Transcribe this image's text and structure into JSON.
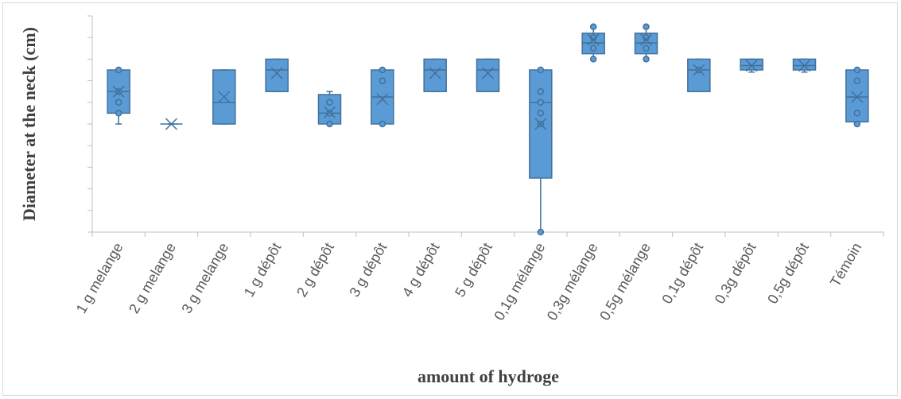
{
  "chart_data": {
    "type": "box",
    "y_label": "Diameter at the neck (cm)",
    "x_label": "amount of hydroge",
    "categories": [
      "1 g melange",
      "2 g melange",
      "3 g melange",
      "1 g dépôt",
      "2 g dépôt",
      "3 g dépôt",
      "4 g dépôt",
      "5 g dépôt",
      "0,1g mélange",
      "0,3g mélange",
      "0,5g mélange",
      "0,1g dépôt",
      "0,3g dépôt",
      "0,5g dépôt",
      "Témoin"
    ],
    "color": "#5b9bd5",
    "edge_color": "#41719c",
    "ylim": [
      0,
      10
    ],
    "yticks": [
      0,
      1,
      2,
      3,
      4,
      5,
      6,
      7,
      8,
      9,
      10
    ],
    "boxes": [
      {
        "min": 5,
        "q1": 5.5,
        "median": 6.5,
        "q3": 7.5,
        "max": 7.5,
        "mean": 6.5,
        "points": [
          7.5,
          6.5,
          6,
          5.5
        ]
      },
      {
        "min": 5,
        "q1": 5,
        "median": 5,
        "q3": 5,
        "max": 5,
        "mean": 5,
        "points": []
      },
      {
        "min": 5,
        "q1": 5,
        "median": 6,
        "q3": 7.5,
        "max": 7.5,
        "mean": 6.25,
        "points": []
      },
      {
        "min": 6.5,
        "q1": 6.5,
        "median": 7.5,
        "q3": 8,
        "max": 8,
        "mean": 7.35,
        "points": []
      },
      {
        "min": 5,
        "q1": 5,
        "median": 5.5,
        "q3": 6.36,
        "max": 6.5,
        "mean": 5.55,
        "points": [
          6,
          5.5,
          5
        ]
      },
      {
        "min": 5,
        "q1": 5,
        "median": 6.25,
        "q3": 7.5,
        "max": 7.5,
        "mean": 6.15,
        "points": [
          7.5,
          7,
          5
        ]
      },
      {
        "min": 6.5,
        "q1": 6.5,
        "median": 7.5,
        "q3": 8,
        "max": 8,
        "mean": 7.35,
        "points": []
      },
      {
        "min": 6.5,
        "q1": 6.5,
        "median": 7.5,
        "q3": 8,
        "max": 8,
        "mean": 7.35,
        "points": []
      },
      {
        "min": 0,
        "q1": 2.5,
        "median": 6,
        "q3": 7.5,
        "max": 7.5,
        "mean": 5,
        "points": [
          7.5,
          6.5,
          6,
          5.5,
          5,
          0
        ]
      },
      {
        "min": 8,
        "q1": 8.25,
        "median": 8.75,
        "q3": 9.2,
        "max": 9.5,
        "mean": 8.9,
        "points": [
          9.5,
          9,
          8.5,
          8
        ]
      },
      {
        "min": 8,
        "q1": 8.25,
        "median": 8.75,
        "q3": 9.2,
        "max": 9.5,
        "mean": 8.9,
        "points": [
          9.5,
          9,
          8.5,
          8
        ]
      },
      {
        "min": 6.5,
        "q1": 6.5,
        "median": 7.5,
        "q3": 8,
        "max": 8,
        "mean": 7.5,
        "points": [
          7.5
        ]
      },
      {
        "min": 7.4,
        "q1": 7.5,
        "median": 7.7,
        "q3": 8,
        "max": 8,
        "mean": 7.7,
        "points": []
      },
      {
        "min": 7.4,
        "q1": 7.5,
        "median": 7.7,
        "q3": 8,
        "max": 8,
        "mean": 7.7,
        "points": []
      },
      {
        "min": 5,
        "q1": 5.1,
        "median": 6.25,
        "q3": 7.5,
        "max": 7.5,
        "mean": 6.25,
        "points": [
          7.5,
          7,
          5.5,
          5
        ]
      }
    ]
  }
}
